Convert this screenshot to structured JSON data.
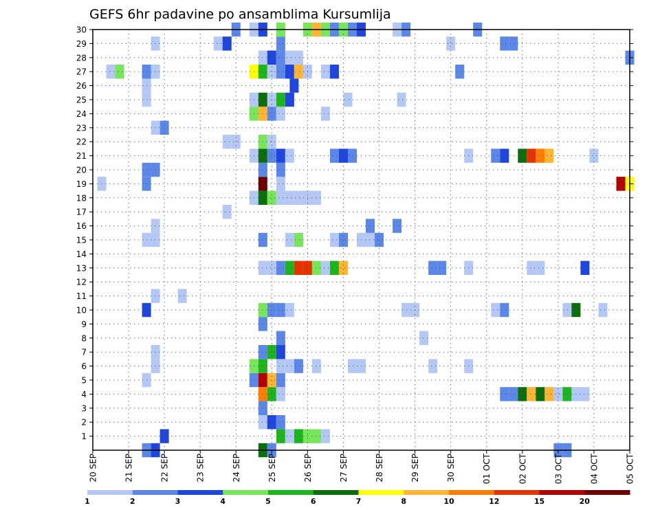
{
  "chart_data": {
    "type": "heatmap",
    "title": "GEFS 6hr padavine po ansamblima Kursumlija",
    "xlabel": "",
    "ylabel": "",
    "grid": true,
    "x_ticks": [
      "20 SEP",
      "21 SEP",
      "22 SEP",
      "23 SEP",
      "24 SEP",
      "25 SEP",
      "26 SEP",
      "27 SEP",
      "28 SEP",
      "29 SEP",
      "30 SEP",
      "01 OCT",
      "02 OCT",
      "03 OCT",
      "04 OCT",
      "05 OCT"
    ],
    "x_range": [
      0,
      15
    ],
    "y_ticks": [
      "1",
      "2",
      "3",
      "4",
      "5",
      "6",
      "7",
      "8",
      "9",
      "10",
      "11",
      "12",
      "13",
      "14",
      "15",
      "16",
      "17",
      "18",
      "19",
      "20",
      "21",
      "22",
      "23",
      "24",
      "25",
      "26",
      "27",
      "28",
      "29",
      "30"
    ],
    "y_range": [
      0,
      30
    ],
    "step_days": 0.25,
    "legend": {
      "labels": [
        "1",
        "2",
        "3",
        "4",
        "5",
        "6",
        "7",
        "8",
        "10",
        "12",
        "15",
        "20"
      ],
      "colors": [
        "#b4c8f5",
        "#5a87e8",
        "#1e46dc",
        "#78e65a",
        "#1eb41e",
        "#0a6e0a",
        "#ffff00",
        "#ffb432",
        "#ff7d00",
        "#e63200",
        "#b40000",
        "#6e0000"
      ]
    },
    "colors": [
      "#ffffff",
      "#b4c8f5",
      "#5a87e8",
      "#1e46dc",
      "#78e65a",
      "#1eb41e",
      "#0a6e0a",
      "#ffff00",
      "#ffb432",
      "#ff7d00",
      "#e63200",
      "#b40000",
      "#6e0000"
    ],
    "points": [
      [
        1.5,
        0,
        2
      ],
      [
        1.75,
        0,
        3
      ],
      [
        4.75,
        0,
        6
      ],
      [
        5,
        0,
        2
      ],
      [
        13,
        0,
        2
      ],
      [
        13.25,
        0,
        2
      ],
      [
        2,
        1,
        3
      ],
      [
        5.25,
        1,
        5
      ],
      [
        5.5,
        1,
        1
      ],
      [
        5.75,
        1,
        5
      ],
      [
        6,
        1,
        4
      ],
      [
        6.25,
        1,
        4
      ],
      [
        6.5,
        1,
        1
      ],
      [
        4.75,
        2,
        1
      ],
      [
        5,
        2,
        3
      ],
      [
        5.25,
        2,
        2
      ],
      [
        4.75,
        3,
        2
      ],
      [
        4.75,
        4,
        9
      ],
      [
        5,
        4,
        5
      ],
      [
        5.25,
        4,
        1
      ],
      [
        11.5,
        4,
        2
      ],
      [
        11.75,
        4,
        2
      ],
      [
        12,
        4,
        6
      ],
      [
        12.25,
        4,
        8
      ],
      [
        12.5,
        4,
        6
      ],
      [
        12.75,
        4,
        8
      ],
      [
        13,
        4,
        1
      ],
      [
        13.25,
        4,
        5
      ],
      [
        13.5,
        4,
        1
      ],
      [
        13.75,
        4,
        1
      ],
      [
        1.5,
        5,
        1
      ],
      [
        4.5,
        5,
        2
      ],
      [
        4.75,
        5,
        11
      ],
      [
        5,
        5,
        8
      ],
      [
        5.25,
        5,
        2
      ],
      [
        1.75,
        6,
        1
      ],
      [
        4.5,
        6,
        4
      ],
      [
        4.75,
        6,
        5
      ],
      [
        5.25,
        6,
        1
      ],
      [
        5.5,
        6,
        1
      ],
      [
        5.75,
        6,
        2
      ],
      [
        6.25,
        6,
        1
      ],
      [
        7.25,
        6,
        1
      ],
      [
        7.5,
        6,
        1
      ],
      [
        9.5,
        6,
        1
      ],
      [
        10.5,
        6,
        1
      ],
      [
        1.75,
        7,
        1
      ],
      [
        4.75,
        7,
        2
      ],
      [
        5,
        7,
        5
      ],
      [
        5.25,
        7,
        3
      ],
      [
        5.25,
        8,
        2
      ],
      [
        9.25,
        8,
        1
      ],
      [
        4.75,
        9,
        2
      ],
      [
        1.5,
        10,
        3
      ],
      [
        4.75,
        10,
        4
      ],
      [
        5,
        10,
        2
      ],
      [
        5.25,
        10,
        2
      ],
      [
        5.5,
        10,
        1
      ],
      [
        8.75,
        10,
        1
      ],
      [
        9,
        10,
        1
      ],
      [
        11.25,
        10,
        1
      ],
      [
        11.5,
        10,
        2
      ],
      [
        13.25,
        10,
        1
      ],
      [
        13.5,
        10,
        6
      ],
      [
        14.25,
        10,
        1
      ],
      [
        1.75,
        11,
        1
      ],
      [
        2.5,
        11,
        1
      ],
      [
        4.75,
        13,
        1
      ],
      [
        5,
        13,
        1
      ],
      [
        5.25,
        13,
        2
      ],
      [
        5.5,
        13,
        5
      ],
      [
        5.75,
        13,
        10
      ],
      [
        6,
        13,
        10
      ],
      [
        6.25,
        13,
        4
      ],
      [
        6.5,
        13,
        1
      ],
      [
        6.75,
        13,
        5
      ],
      [
        7,
        13,
        8
      ],
      [
        9.5,
        13,
        2
      ],
      [
        9.75,
        13,
        2
      ],
      [
        10.5,
        13,
        1
      ],
      [
        12.25,
        13,
        1
      ],
      [
        12.5,
        13,
        1
      ],
      [
        13.75,
        13,
        3
      ],
      [
        1.5,
        15,
        1
      ],
      [
        1.75,
        15,
        1
      ],
      [
        4.75,
        15,
        2
      ],
      [
        5.5,
        15,
        1
      ],
      [
        5.75,
        15,
        4
      ],
      [
        6.75,
        15,
        1
      ],
      [
        7,
        15,
        2
      ],
      [
        7.5,
        15,
        1
      ],
      [
        7.75,
        15,
        1
      ],
      [
        8,
        15,
        2
      ],
      [
        1.75,
        16,
        1
      ],
      [
        7.75,
        16,
        2
      ],
      [
        8.5,
        16,
        2
      ],
      [
        3.75,
        17,
        1
      ],
      [
        4.5,
        18,
        1
      ],
      [
        4.75,
        18,
        6
      ],
      [
        5,
        18,
        4
      ],
      [
        5.25,
        18,
        1
      ],
      [
        5.5,
        18,
        1
      ],
      [
        5.75,
        18,
        1
      ],
      [
        6,
        18,
        1
      ],
      [
        6.25,
        18,
        1
      ],
      [
        0.25,
        19,
        1
      ],
      [
        1.5,
        19,
        2
      ],
      [
        4.75,
        19,
        12
      ],
      [
        5.25,
        19,
        1
      ],
      [
        14.75,
        19,
        11
      ],
      [
        15,
        19,
        7
      ],
      [
        1.5,
        20,
        2
      ],
      [
        1.75,
        20,
        2
      ],
      [
        4.75,
        20,
        2
      ],
      [
        5.25,
        20,
        2
      ],
      [
        4.5,
        21,
        1
      ],
      [
        4.75,
        21,
        6
      ],
      [
        5,
        21,
        2
      ],
      [
        5.25,
        21,
        3
      ],
      [
        5.5,
        21,
        1
      ],
      [
        6.75,
        21,
        2
      ],
      [
        7,
        21,
        3
      ],
      [
        7.25,
        21,
        2
      ],
      [
        10.5,
        21,
        1
      ],
      [
        11.25,
        21,
        2
      ],
      [
        11.5,
        21,
        3
      ],
      [
        12,
        21,
        6
      ],
      [
        12.25,
        21,
        10
      ],
      [
        12.5,
        21,
        9
      ],
      [
        12.75,
        21,
        8
      ],
      [
        14,
        21,
        1
      ],
      [
        3.75,
        22,
        1
      ],
      [
        4,
        22,
        1
      ],
      [
        4.75,
        22,
        4
      ],
      [
        5,
        22,
        1
      ],
      [
        1.75,
        23,
        1
      ],
      [
        2,
        23,
        2
      ],
      [
        4.5,
        24,
        4
      ],
      [
        4.75,
        24,
        8
      ],
      [
        5,
        24,
        2
      ],
      [
        5.25,
        24,
        1
      ],
      [
        6.5,
        24,
        1
      ],
      [
        1.5,
        25,
        1
      ],
      [
        4.5,
        25,
        1
      ],
      [
        4.75,
        25,
        6
      ],
      [
        5,
        25,
        1
      ],
      [
        5.25,
        25,
        5
      ],
      [
        5.5,
        25,
        3
      ],
      [
        7.125,
        25,
        1
      ],
      [
        8.625,
        25,
        1
      ],
      [
        1.5,
        26,
        1
      ],
      [
        5.625,
        26,
        3
      ],
      [
        0.5,
        27,
        1
      ],
      [
        0.75,
        27,
        4
      ],
      [
        1.5,
        27,
        2
      ],
      [
        1.75,
        27,
        1
      ],
      [
        4.5,
        27,
        7
      ],
      [
        4.75,
        27,
        5
      ],
      [
        5,
        27,
        1
      ],
      [
        5.25,
        27,
        2
      ],
      [
        5.5,
        27,
        3
      ],
      [
        5.75,
        27,
        8
      ],
      [
        6,
        27,
        1
      ],
      [
        6.5,
        27,
        1
      ],
      [
        6.75,
        27,
        3
      ],
      [
        10.25,
        27,
        2
      ],
      [
        4.75,
        28,
        1
      ],
      [
        5,
        28,
        3
      ],
      [
        5.25,
        28,
        2
      ],
      [
        5.5,
        28,
        1
      ],
      [
        5.75,
        28,
        1
      ],
      [
        15,
        28,
        2
      ],
      [
        1.75,
        29,
        1
      ],
      [
        3.5,
        29,
        1
      ],
      [
        3.75,
        29,
        3
      ],
      [
        5.25,
        29,
        2
      ],
      [
        10,
        29,
        1
      ],
      [
        11.5,
        29,
        2
      ],
      [
        11.75,
        29,
        2
      ],
      [
        4,
        30,
        2
      ],
      [
        4.5,
        30,
        1
      ],
      [
        4.75,
        30,
        3
      ],
      [
        5.25,
        30,
        4
      ],
      [
        6,
        30,
        4
      ],
      [
        6.25,
        30,
        8
      ],
      [
        6.5,
        30,
        4
      ],
      [
        6.75,
        30,
        2
      ],
      [
        7,
        30,
        4
      ],
      [
        7.25,
        30,
        2
      ],
      [
        7.5,
        30,
        3
      ],
      [
        8.5,
        30,
        1
      ],
      [
        8.75,
        30,
        2
      ],
      [
        10.75,
        30,
        2
      ]
    ]
  }
}
